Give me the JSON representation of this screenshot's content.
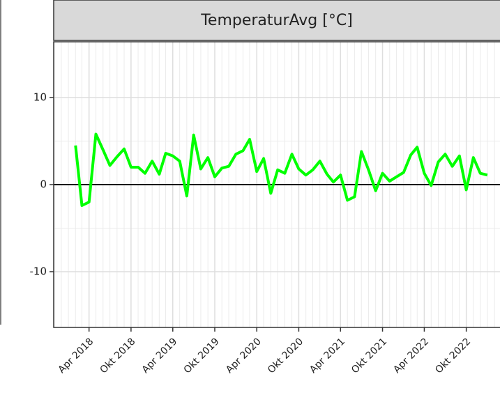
{
  "chart_data": {
    "type": "line",
    "title": "TemperaturAvg [°C]",
    "x": [
      "2018-02",
      "2018-03",
      "2018-04",
      "2018-05",
      "2018-06",
      "2018-07",
      "2018-08",
      "2018-09",
      "2018-10",
      "2018-11",
      "2018-12",
      "2019-01",
      "2019-02",
      "2019-03",
      "2019-04",
      "2019-05",
      "2019-06",
      "2019-07",
      "2019-08",
      "2019-09",
      "2019-10",
      "2019-11",
      "2019-12",
      "2020-01",
      "2020-02",
      "2020-03",
      "2020-04",
      "2020-05",
      "2020-06",
      "2020-07",
      "2020-08",
      "2020-09",
      "2020-10",
      "2020-11",
      "2020-12",
      "2021-01",
      "2021-02",
      "2021-03",
      "2021-04",
      "2021-05",
      "2021-06",
      "2021-07",
      "2021-08",
      "2021-09",
      "2021-10",
      "2021-11",
      "2021-12",
      "2022-01",
      "2022-02",
      "2022-03",
      "2022-04",
      "2022-05",
      "2022-06",
      "2022-07",
      "2022-08",
      "2022-09",
      "2022-10",
      "2022-11",
      "2022-12",
      "2023-01"
    ],
    "series": [
      {
        "color": "#00ff00",
        "values": [
          4.5,
          -2.4,
          -2.0,
          5.8,
          4.0,
          2.2,
          3.2,
          4.1,
          2.0,
          2.0,
          1.3,
          2.7,
          1.2,
          3.6,
          3.3,
          2.7,
          -1.3,
          5.7,
          1.8,
          3.1,
          0.9,
          1.9,
          2.1,
          3.5,
          3.9,
          5.2,
          1.5,
          3.0,
          -1.0,
          1.7,
          1.3,
          3.5,
          1.8,
          1.1,
          1.7,
          2.7,
          1.2,
          0.3,
          1.1,
          -1.8,
          -1.4,
          3.8,
          1.7,
          -0.7,
          1.3,
          0.4,
          0.9,
          1.4,
          3.4,
          4.3,
          1.3,
          -0.1,
          2.6,
          3.5,
          2.1,
          3.3,
          -0.6,
          3.1,
          1.3,
          1.1
        ]
      }
    ],
    "xlim": [
      "2017-10-29",
      "2023-02-28"
    ],
    "xticks": [
      {
        "value": "2018-04",
        "label": "Apr 2018"
      },
      {
        "value": "2018-10",
        "label": "Okt 2018"
      },
      {
        "value": "2019-04",
        "label": "Apr 2019"
      },
      {
        "value": "2019-10",
        "label": "Okt 2019"
      },
      {
        "value": "2020-04",
        "label": "Apr 2020"
      },
      {
        "value": "2020-10",
        "label": "Okt 2020"
      },
      {
        "value": "2021-04",
        "label": "Apr 2021"
      },
      {
        "value": "2021-10",
        "label": "Okt 2021"
      },
      {
        "value": "2022-04",
        "label": "Apr 2022"
      },
      {
        "value": "2022-10",
        "label": "Okt 2022"
      }
    ],
    "ylim": [
      -16.4,
      16.4
    ],
    "yticks": [
      -10,
      0,
      10
    ],
    "hline": 0,
    "grid": true
  }
}
